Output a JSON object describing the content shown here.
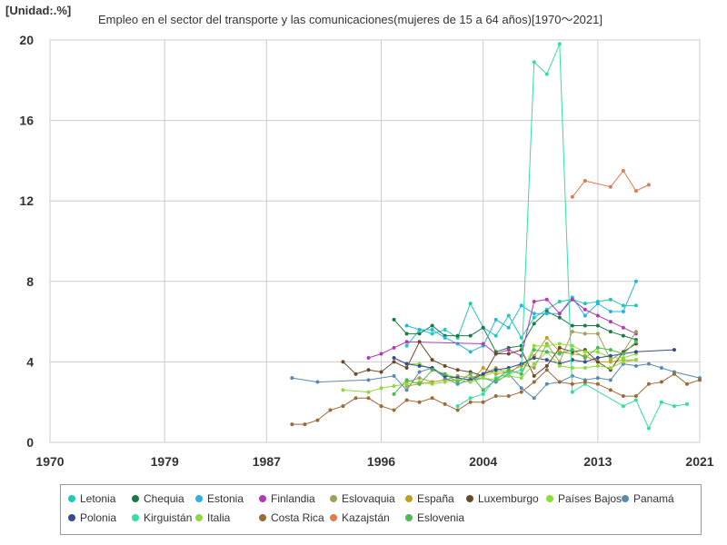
{
  "unit_label": "[Unidad:.%]",
  "chart_data": {
    "type": "line",
    "title": "Empleo en el sector del transporte y las comunicaciones(mujeres de 15 a 64 años)[1970～2021]",
    "xlabel": "",
    "ylabel": "",
    "xlim": [
      1970,
      2021
    ],
    "ylim": [
      0,
      20
    ],
    "x_ticks": [
      1970,
      1979,
      1987,
      1996,
      2004,
      2013,
      2021
    ],
    "y_ticks": [
      0,
      4,
      8,
      12,
      16,
      20
    ],
    "grid": true,
    "legend_position": "bottom",
    "series": [
      {
        "name": "Letonia",
        "color": "#1fc9b4",
        "x": [
          1998,
          1999,
          2000,
          2001,
          2002,
          2003,
          2004,
          2005,
          2006,
          2007,
          2008,
          2009,
          2010,
          2011,
          2012,
          2013,
          2014,
          2015,
          2016
        ],
        "y": [
          4.8,
          5.6,
          5.4,
          5.6,
          5.2,
          6.9,
          5.7,
          5.3,
          6.3,
          5.2,
          6.2,
          6.6,
          7.0,
          7.1,
          6.9,
          7.0,
          7.1,
          6.8,
          6.8
        ]
      },
      {
        "name": "Chequia",
        "color": "#1a7a45",
        "x": [
          1997,
          1998,
          1999,
          2000,
          2001,
          2002,
          2003,
          2004,
          2005,
          2006,
          2007,
          2008,
          2009,
          2010,
          2011,
          2012,
          2013,
          2014,
          2015,
          2016
        ],
        "y": [
          6.1,
          5.4,
          5.4,
          5.8,
          5.3,
          5.3,
          5.3,
          5.7,
          4.5,
          4.7,
          4.8,
          5.9,
          6.5,
          6.2,
          5.8,
          5.8,
          5.8,
          5.5,
          5.3,
          5.1
        ]
      },
      {
        "name": "Estonia",
        "color": "#28b4e0",
        "x": [
          1998,
          1999,
          2000,
          2001,
          2002,
          2003,
          2004,
          2005,
          2006,
          2007,
          2008,
          2009,
          2010,
          2011,
          2012,
          2013,
          2014,
          2015,
          2016
        ],
        "y": [
          5.8,
          5.6,
          5.6,
          5.2,
          4.9,
          4.5,
          4.8,
          6.1,
          5.7,
          6.8,
          6.4,
          6.4,
          6.4,
          7.2,
          6.3,
          6.9,
          6.5,
          6.5,
          8.0
        ]
      },
      {
        "name": "Finlandia",
        "color": "#b23ab8",
        "x": [
          1995,
          1996,
          1997,
          1998,
          2004,
          2005,
          2006,
          2007,
          2008,
          2009,
          2010,
          2011,
          2012,
          2013,
          2014,
          2015,
          2016
        ],
        "y": [
          4.2,
          4.4,
          4.7,
          5.0,
          4.9,
          4.4,
          4.6,
          4.3,
          7.0,
          7.1,
          6.4,
          7.1,
          6.6,
          6.3,
          6.0,
          5.7,
          5.4
        ]
      },
      {
        "name": "Eslovaquia",
        "color": "#a0a05a",
        "x": [
          1998,
          1999,
          2000,
          2001,
          2002,
          2003,
          2004,
          2005,
          2006,
          2007,
          2008,
          2009,
          2010,
          2011,
          2012,
          2013,
          2014,
          2015,
          2016
        ],
        "y": [
          3.0,
          3.2,
          3.0,
          3.1,
          3.3,
          3.2,
          3.4,
          3.7,
          3.4,
          3.9,
          3.7,
          4.9,
          4.0,
          5.5,
          5.4,
          5.4,
          4.1,
          4.5,
          5.5
        ]
      },
      {
        "name": "España",
        "color": "#c0a020",
        "x": [
          1998,
          1999,
          2000,
          2001,
          2002,
          2003,
          2004,
          2005,
          2006,
          2007,
          2008,
          2009,
          2010,
          2011,
          2012,
          2013,
          2014,
          2015,
          2016
        ],
        "y": [
          2.8,
          2.9,
          3.0,
          3.1,
          3.1,
          3.0,
          3.7,
          3.4,
          3.5,
          3.8,
          4.3,
          5.2,
          4.5,
          4.4,
          4.3,
          4.0,
          4.0,
          4.1,
          4.1
        ]
      },
      {
        "name": "Luxemburgo",
        "color": "#6a4a2a",
        "x": [
          1993,
          1994,
          1995,
          1996,
          1997,
          1998,
          1999,
          2000,
          2001,
          2002,
          2003,
          2004,
          2005,
          2006,
          2007,
          2008,
          2009,
          2010,
          2011,
          2012,
          2013,
          2014,
          2015,
          2016
        ],
        "y": [
          4.0,
          3.4,
          3.6,
          3.5,
          4.0,
          3.7,
          5.0,
          4.1,
          3.8,
          3.6,
          3.5,
          3.3,
          4.4,
          4.4,
          4.6,
          3.3,
          3.8,
          4.7,
          4.5,
          4.6,
          4.0,
          3.6,
          4.5,
          4.9
        ]
      },
      {
        "name": "Países Bajos",
        "color": "#88e030",
        "x": [
          1998,
          1999,
          2000,
          2001,
          2002,
          2003,
          2004,
          2005,
          2006,
          2007,
          2008,
          2009,
          2010,
          2011,
          2012,
          2013,
          2014,
          2015,
          2016
        ],
        "y": [
          3.9,
          3.9,
          3.6,
          3.4,
          3.2,
          3.1,
          3.3,
          3.5,
          3.6,
          3.4,
          4.8,
          4.8,
          4.9,
          4.8,
          4.5,
          4.5,
          4.2,
          4.2,
          4.4
        ]
      },
      {
        "name": "Panamá",
        "color": "#5a8ab0",
        "x": [
          1989,
          1991,
          1995,
          1997,
          1998,
          1999,
          2000,
          2001,
          2002,
          2003,
          2004,
          2005,
          2006,
          2007,
          2008,
          2009,
          2010,
          2011,
          2012,
          2013,
          2014,
          2015,
          2016,
          2017,
          2018,
          2019,
          2021
        ],
        "y": [
          3.2,
          3.0,
          3.1,
          3.3,
          2.6,
          3.5,
          3.7,
          3.2,
          2.9,
          3.1,
          3.2,
          3.0,
          3.4,
          2.7,
          2.2,
          2.9,
          3.0,
          3.3,
          3.1,
          3.2,
          3.1,
          3.9,
          3.8,
          3.9,
          3.7,
          3.5,
          3.2
        ]
      },
      {
        "name": "Polonia",
        "color": "#3a4a8a",
        "x": [
          1997,
          1998,
          1999,
          2000,
          2001,
          2002,
          2003,
          2004,
          2005,
          2006,
          2007,
          2008,
          2009,
          2010,
          2011,
          2012,
          2013,
          2014,
          2015,
          2016,
          2019
        ],
        "y": [
          4.2,
          3.9,
          3.8,
          3.7,
          3.3,
          3.2,
          3.1,
          3.4,
          3.6,
          3.7,
          3.9,
          4.2,
          4.1,
          3.9,
          4.1,
          4.0,
          4.2,
          4.3,
          4.4,
          4.5,
          4.6
        ]
      },
      {
        "name": "Kirguistán",
        "color": "#30e0a0",
        "x": [
          2002,
          2003,
          2004,
          2005,
          2006,
          2007,
          2008,
          2009,
          2010,
          2011,
          2012,
          2015,
          2016,
          2017,
          2018,
          2019,
          2020
        ],
        "y": [
          1.8,
          2.2,
          2.4,
          3.2,
          3.4,
          3.6,
          18.9,
          18.3,
          19.8,
          2.5,
          2.9,
          1.8,
          2.1,
          0.7,
          2.0,
          1.8,
          1.9
        ]
      },
      {
        "name": "Italia",
        "color": "#90d840",
        "x": [
          1993,
          1995,
          1996,
          1997,
          1998,
          1999,
          2000,
          2001,
          2002,
          2003,
          2004,
          2005,
          2006,
          2007,
          2008,
          2009,
          2010,
          2011,
          2012,
          2013,
          2014,
          2015,
          2016
        ],
        "y": [
          2.6,
          2.5,
          2.7,
          2.8,
          2.9,
          3.0,
          2.9,
          3.0,
          3.1,
          3.0,
          3.2,
          3.1,
          3.3,
          3.2,
          3.9,
          4.5,
          3.8,
          3.7,
          3.7,
          3.8,
          3.7,
          4.0,
          4.1
        ]
      },
      {
        "name": "Costa Rica",
        "color": "#9b6a3a",
        "x": [
          1989,
          1990,
          1991,
          1992,
          1993,
          1994,
          1995,
          1996,
          1997,
          1998,
          1999,
          2000,
          2001,
          2002,
          2003,
          2004,
          2005,
          2006,
          2007,
          2008,
          2009,
          2010,
          2011,
          2012,
          2013,
          2014,
          2015,
          2016,
          2017,
          2018,
          2019,
          2020,
          2021
        ],
        "y": [
          0.9,
          0.9,
          1.1,
          1.6,
          1.8,
          2.2,
          2.2,
          1.8,
          1.6,
          2.1,
          2.0,
          2.2,
          1.9,
          1.6,
          2.0,
          2.0,
          2.3,
          2.3,
          2.5,
          3.0,
          3.6,
          3.0,
          2.9,
          3.0,
          2.9,
          2.6,
          2.3,
          2.3,
          2.9,
          3.0,
          3.4,
          2.9,
          3.1
        ]
      },
      {
        "name": "Kazajstán",
        "color": "#e07a50",
        "x": [
          2011,
          2012,
          2014,
          2015,
          2016,
          2017
        ],
        "y": [
          12.2,
          13.0,
          12.7,
          13.5,
          12.5,
          12.8
        ]
      },
      {
        "name": "Eslovenia",
        "color": "#50b850",
        "x": [
          1997,
          1998,
          1999,
          2000,
          2001,
          2002,
          2003,
          2004,
          2005,
          2006,
          2007,
          2008,
          2009,
          2010,
          2011,
          2012,
          2013,
          2014,
          2015,
          2016
        ],
        "y": [
          2.4,
          3.1,
          2.9,
          3.6,
          3.4,
          3.0,
          3.4,
          2.6,
          3.1,
          3.6,
          3.4,
          4.6,
          4.5,
          4.4,
          4.6,
          4.2,
          4.7,
          4.6,
          4.4,
          5.0
        ]
      }
    ]
  }
}
